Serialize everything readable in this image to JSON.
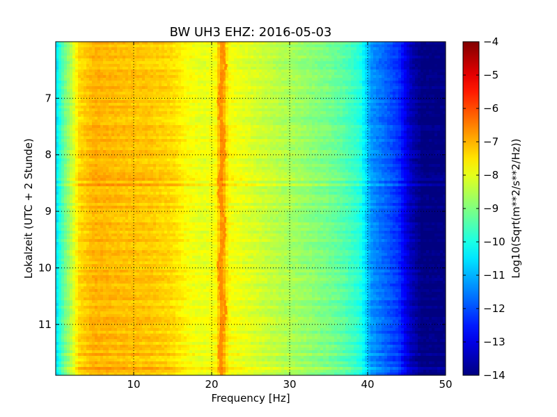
{
  "chart_data": {
    "type": "heatmap",
    "title": "BW UH3 EHZ: 2016-05-03",
    "xlabel": "Frequency [Hz]",
    "ylabel": "Lokalzeit (UTC + 2 Stunde)",
    "xlim": [
      0.0,
      50
    ],
    "ylim": [
      11.9,
      6.0
    ],
    "y_inverted": true,
    "xticks": [
      10,
      20,
      30,
      40,
      50
    ],
    "xtick_labels": [
      "10",
      "20",
      "30",
      "40",
      "50"
    ],
    "yticks": [
      7,
      8,
      9,
      10,
      11
    ],
    "ytick_labels": [
      "7",
      "8",
      "9",
      "10",
      "11"
    ],
    "grid": true,
    "colormap": "jet",
    "colorbar": {
      "label": "Log10(Sqrt(m**2/s**2/Hz))",
      "range": [
        -14,
        -4
      ],
      "ticks": [
        -4,
        -5,
        -6,
        -7,
        -8,
        -9,
        -10,
        -11,
        -12,
        -13,
        -14
      ],
      "tick_labels": [
        "−4",
        "−5",
        "−6",
        "−7",
        "−8",
        "−9",
        "−10",
        "−11",
        "−12",
        "−13",
        "−14"
      ]
    },
    "spectrum_profile": {
      "frequency_hz": [
        0,
        1,
        2,
        3,
        5,
        8,
        12,
        15,
        17,
        19,
        20.5,
        21.3,
        22.2,
        24,
        27,
        30,
        33,
        35,
        37,
        39,
        39.8,
        40.5,
        42,
        44,
        45.5,
        47,
        50
      ],
      "log10_amplitude": [
        -10.6,
        -9.3,
        -8.4,
        -7.4,
        -7.0,
        -7.1,
        -7.2,
        -7.4,
        -7.8,
        -8.0,
        -7.8,
        -6.6,
        -7.8,
        -8.0,
        -8.3,
        -8.6,
        -8.9,
        -9.1,
        -9.4,
        -9.9,
        -10.6,
        -11.3,
        -11.7,
        -12.3,
        -13.4,
        -14.0,
        -14.0
      ]
    },
    "features": [
      {
        "label": "narrow peak",
        "frequency_hz": 21.3
      }
    ]
  }
}
